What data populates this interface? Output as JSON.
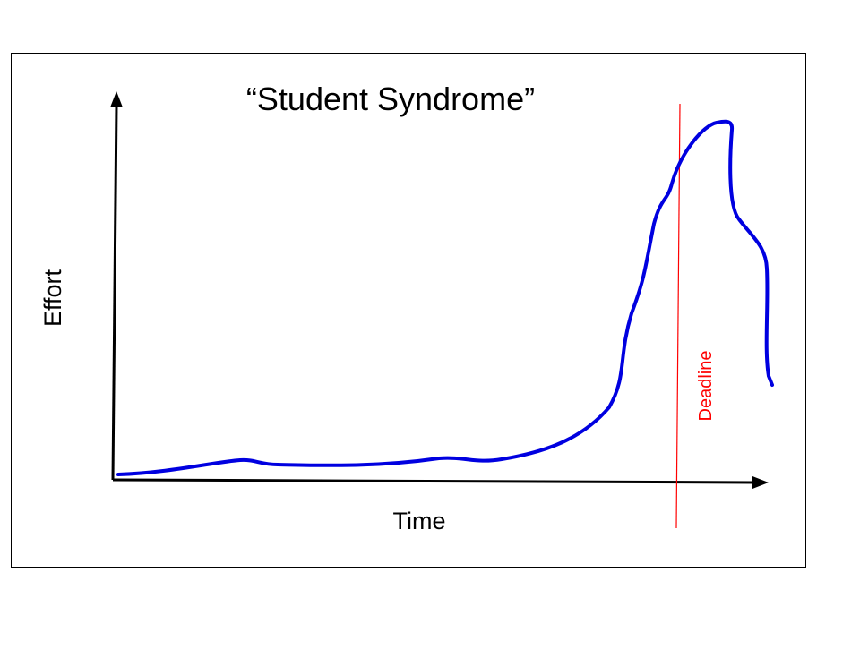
{
  "title": "“Student Syndrome”",
  "axes": {
    "y_label": "Effort",
    "x_label": "Time"
  },
  "deadline_label": "Deadline"
}
